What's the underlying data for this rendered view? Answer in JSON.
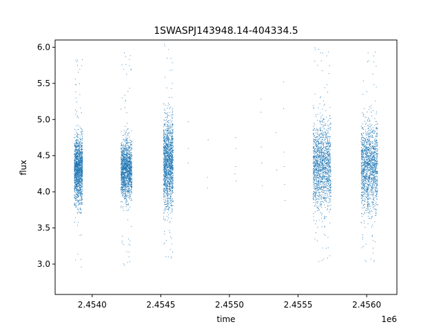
{
  "chart_data": {
    "type": "scatter",
    "title": "1SWASPJ143948.14-404334.5",
    "xlabel": "time",
    "ylabel": "flux",
    "x_offset_label": "1e6",
    "xlim": [
      2453730,
      2456220
    ],
    "ylim": [
      2.58,
      6.1
    ],
    "x_ticks": [
      2453500,
      2454000,
      2454500,
      2455000,
      2455500,
      2456000
    ],
    "x_tick_labels": [
      "2.4540",
      "2.4545",
      "2.4550",
      "2.4555",
      "2.4560"
    ],
    "x_tick_values": [
      2454000,
      2454500,
      2455000,
      2455500,
      2456000
    ],
    "y_tick_values": [
      3.0,
      3.5,
      4.0,
      4.5,
      5.0,
      5.5,
      6.0
    ],
    "y_tick_labels": [
      "3.0",
      "3.5",
      "4.0",
      "4.5",
      "5.0",
      "5.5",
      "6.0"
    ],
    "grid": false,
    "marker_color": "#1f77b4",
    "season_summary": [
      {
        "start": 2453870,
        "end": 2453930,
        "median": 4.3,
        "spread_low": 3.8,
        "spread_high": 4.7
      },
      {
        "start": 2454210,
        "end": 2454290,
        "median": 4.3,
        "spread_low": 3.9,
        "spread_high": 4.7
      },
      {
        "start": 2454520,
        "end": 2454590,
        "median": 4.4,
        "spread_low": 3.7,
        "spread_high": 4.9
      },
      {
        "start": 2455610,
        "end": 2455740,
        "median": 4.35,
        "spread_low": 3.7,
        "spread_high": 4.9
      },
      {
        "start": 2455960,
        "end": 2456080,
        "median": 4.35,
        "spread_low": 3.7,
        "spread_high": 4.9
      }
    ],
    "sparse_points": [
      {
        "x": 2454700,
        "y": 4.97
      },
      {
        "x": 2454700,
        "y": 4.4
      },
      {
        "x": 2454700,
        "y": 4.6
      },
      {
        "x": 2454840,
        "y": 4.2
      },
      {
        "x": 2454840,
        "y": 4.05
      },
      {
        "x": 2454845,
        "y": 4.72
      },
      {
        "x": 2455040,
        "y": 4.25
      },
      {
        "x": 2455045,
        "y": 4.35
      },
      {
        "x": 2455045,
        "y": 4.75
      },
      {
        "x": 2455050,
        "y": 4.6
      },
      {
        "x": 2455050,
        "y": 4.15
      },
      {
        "x": 2455230,
        "y": 5.28
      },
      {
        "x": 2455230,
        "y": 5.1
      },
      {
        "x": 2455232,
        "y": 4.62
      },
      {
        "x": 2455235,
        "y": 4.4
      },
      {
        "x": 2455240,
        "y": 4.08
      },
      {
        "x": 2455340,
        "y": 4.82
      },
      {
        "x": 2455345,
        "y": 4.3
      },
      {
        "x": 2455395,
        "y": 5.52
      },
      {
        "x": 2455398,
        "y": 4.55
      },
      {
        "x": 2455400,
        "y": 4.35
      },
      {
        "x": 2455402,
        "y": 4.1
      },
      {
        "x": 2455405,
        "y": 3.88
      },
      {
        "x": 2455395,
        "y": 5.15
      }
    ]
  }
}
